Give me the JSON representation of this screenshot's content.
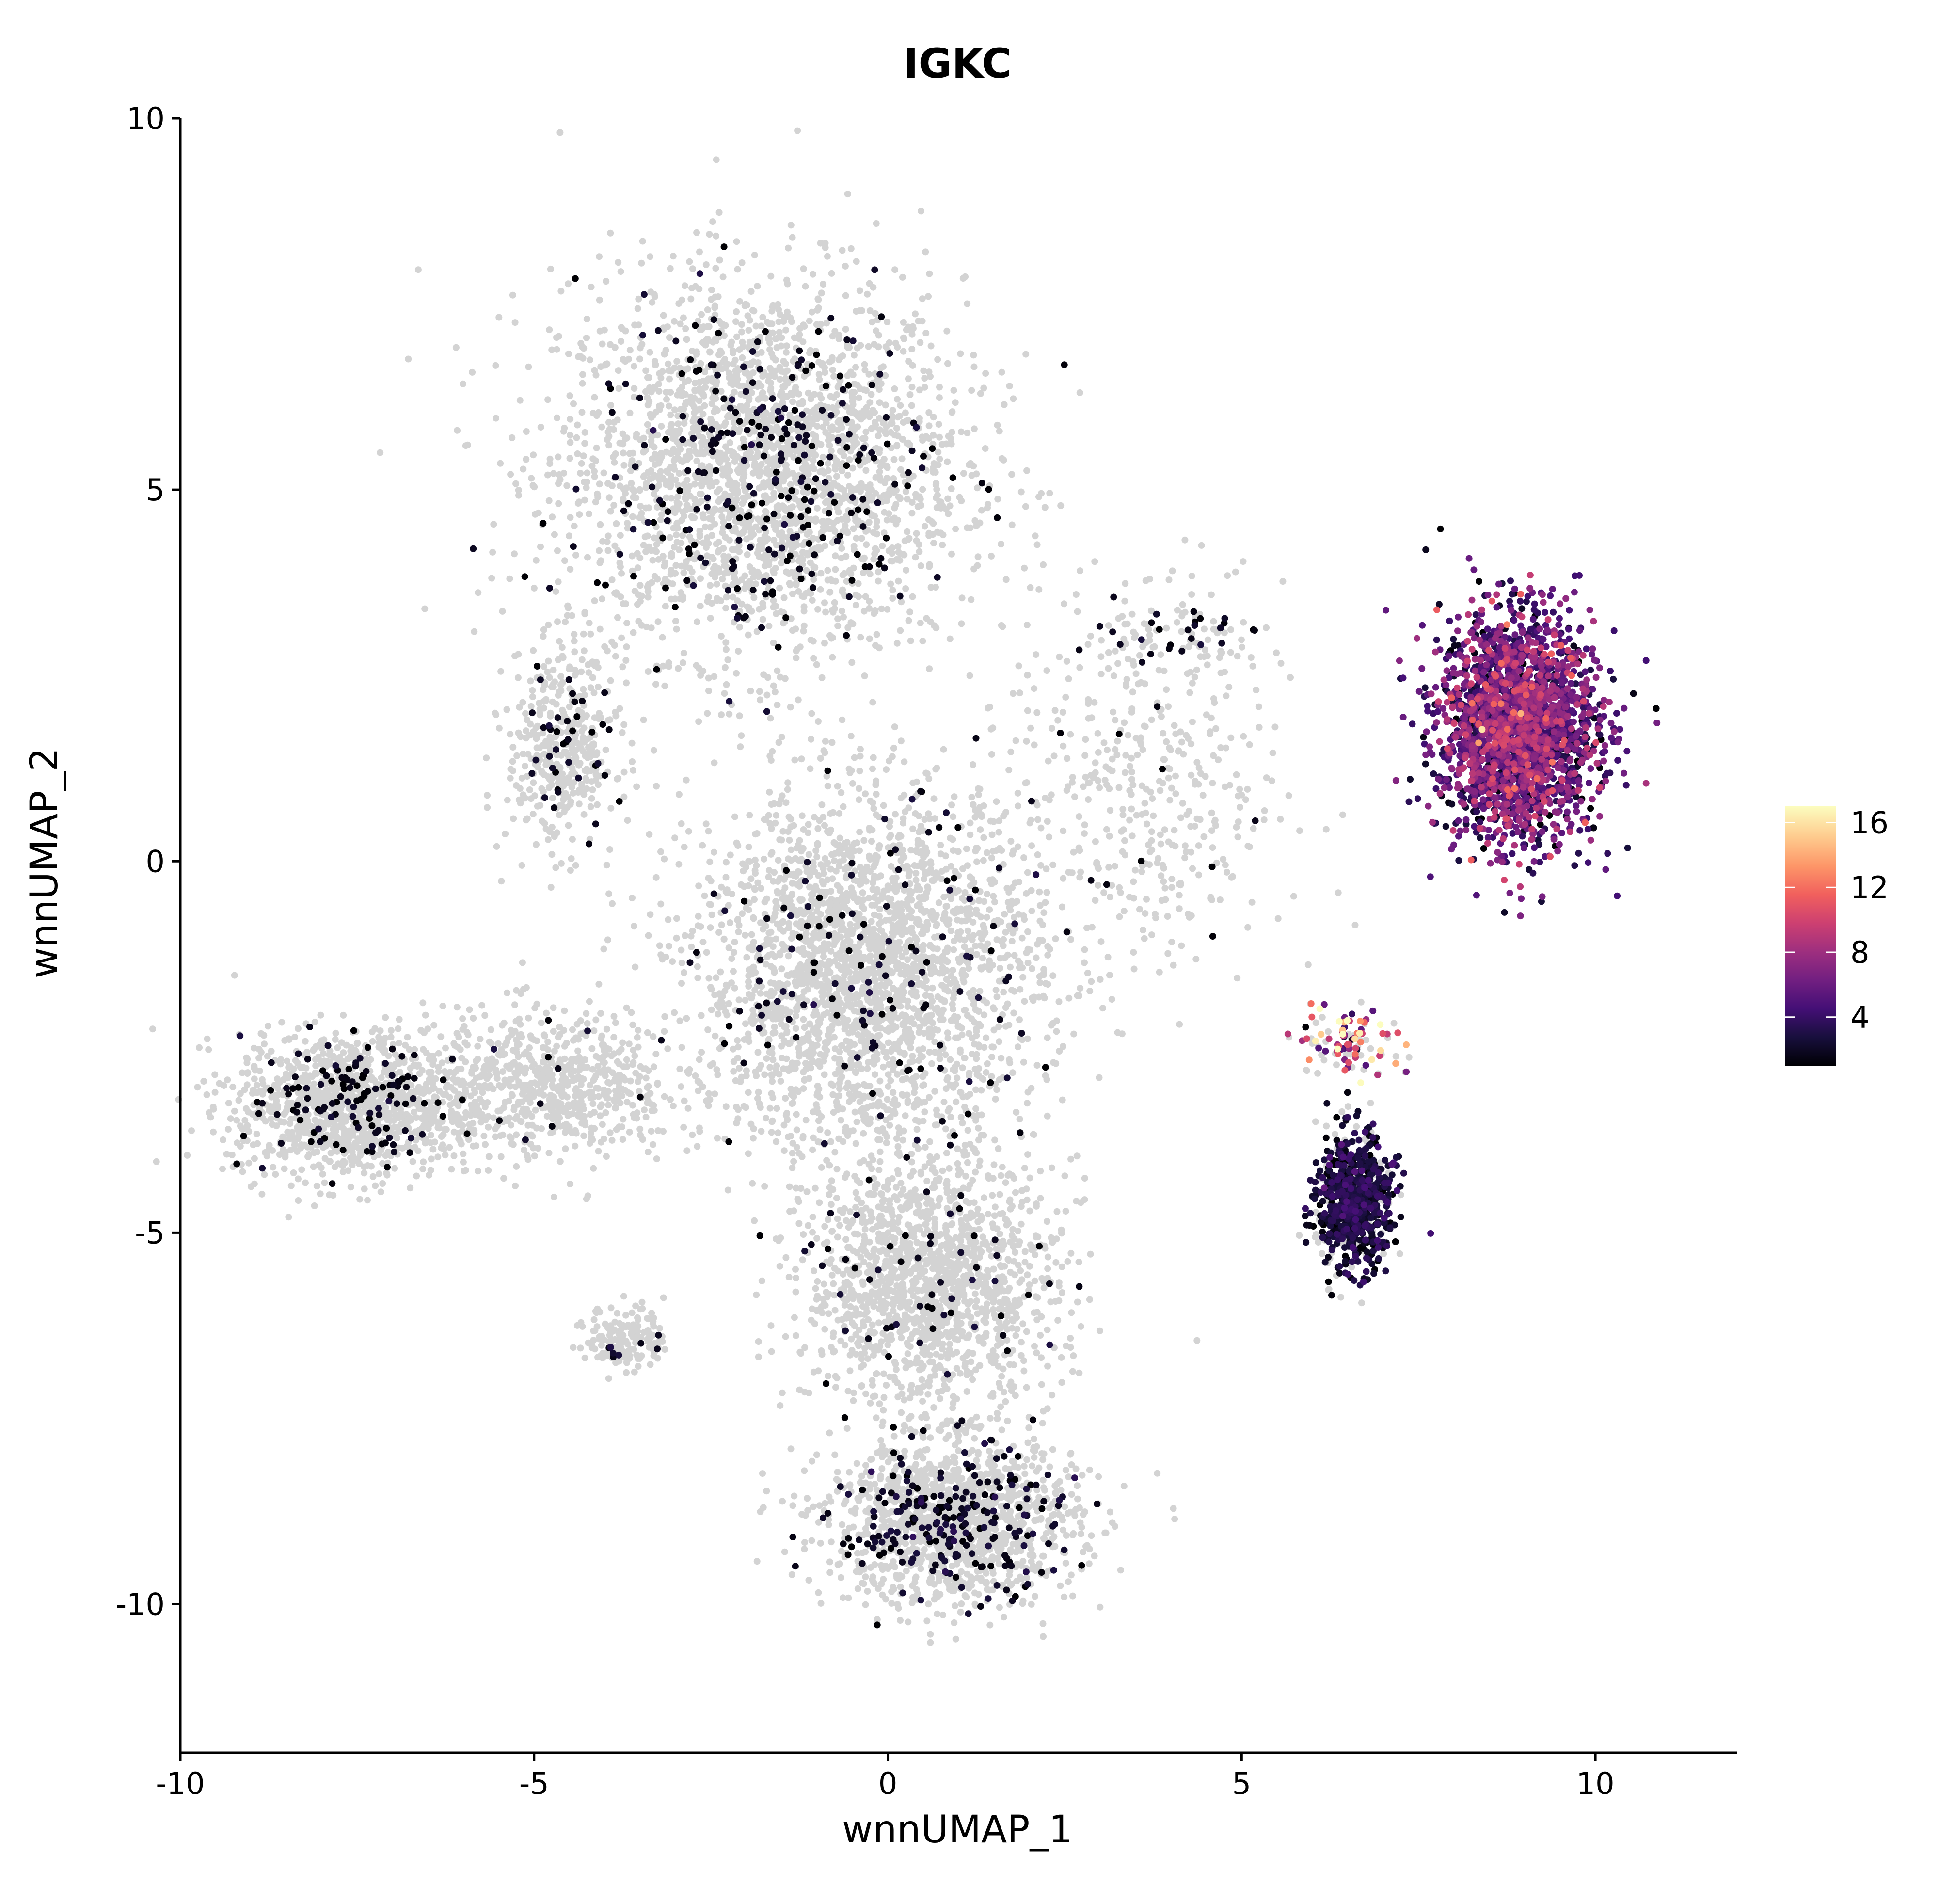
{
  "chart_data": {
    "type": "scatter",
    "title": "IGKC",
    "xlabel": "wnnUMAP_1",
    "ylabel": "wnnUMAP_2",
    "xlim": [
      -10,
      12
    ],
    "ylim": [
      -12,
      10
    ],
    "x_ticks": [
      -10,
      -5,
      0,
      5,
      10
    ],
    "y_ticks": [
      10,
      5,
      0,
      -5,
      -10
    ],
    "x_tick_labels": [
      "-10",
      "-5",
      "0",
      "5",
      "10"
    ],
    "y_tick_labels": [
      "10",
      "5",
      "0",
      "-5",
      "-10"
    ],
    "grid": false,
    "background_point_color": "#d3d3d3",
    "color_scale": {
      "name": "magma",
      "min": 1,
      "max": 17,
      "ticks": [
        4,
        8,
        12,
        16
      ],
      "tick_labels": [
        "4",
        "8",
        "12",
        "16"
      ],
      "colors": [
        "#000004",
        "#180f3d",
        "#440f76",
        "#721f81",
        "#9e2f7f",
        "#cd4071",
        "#f1605d",
        "#fd9668",
        "#feca8d",
        "#fcfdbf"
      ],
      "legend_position": "right"
    },
    "regions": [
      {
        "name": "upper-left lobe",
        "center": [
          -1.8,
          5.3
        ],
        "spread": [
          2.6,
          2.3
        ],
        "points": 2600,
        "expressing": 280,
        "expr_mean": 1.5
      },
      {
        "name": "upper-left arm",
        "center": [
          -4.6,
          1.5
        ],
        "spread": [
          0.7,
          1.2
        ],
        "points": 400,
        "expressing": 40,
        "expr_mean": 1.4
      },
      {
        "name": "central body",
        "center": [
          -0.3,
          -1.5
        ],
        "spread": [
          2.2,
          2.2
        ],
        "points": 2600,
        "expressing": 130,
        "expr_mean": 1.6
      },
      {
        "name": "left lobe",
        "center": [
          -7.6,
          -3.3
        ],
        "spread": [
          1.5,
          0.9
        ],
        "points": 1100,
        "expressing": 130,
        "expr_mean": 1.4
      },
      {
        "name": "left bridge",
        "center": [
          -4.8,
          -3.0
        ],
        "spread": [
          1.6,
          0.9
        ],
        "points": 700,
        "expressing": 10,
        "expr_mean": 1.4
      },
      {
        "name": "lower trunk",
        "center": [
          0.6,
          -5.7
        ],
        "spread": [
          1.6,
          1.5
        ],
        "points": 1500,
        "expressing": 60,
        "expr_mean": 1.6
      },
      {
        "name": "bottom lobe",
        "center": [
          0.9,
          -8.9
        ],
        "spread": [
          1.6,
          1.0
        ],
        "points": 1300,
        "expressing": 230,
        "expr_mean": 1.8
      },
      {
        "name": "small bottom-left island",
        "center": [
          -3.7,
          -6.4
        ],
        "spread": [
          0.5,
          0.4
        ],
        "points": 160,
        "expressing": 8,
        "expr_mean": 1.5
      },
      {
        "name": "sparse right wing",
        "center": [
          3.6,
          1.0
        ],
        "spread": [
          1.8,
          2.5
        ],
        "points": 450,
        "expressing": 15,
        "expr_mean": 1.3
      },
      {
        "name": "plasma cell cluster",
        "center": [
          8.9,
          1.8
        ],
        "spread": [
          1.1,
          1.5
        ],
        "points": 0,
        "expressing": 2400,
        "expr_mean": 5.5
      },
      {
        "name": "lower right cluster",
        "center": [
          6.6,
          -4.6
        ],
        "spread": [
          0.5,
          0.9
        ],
        "points": 150,
        "expressing": 650,
        "expr_mean": 2.4
      },
      {
        "name": "bridge strand",
        "center": [
          6.5,
          -2.4
        ],
        "spread": [
          0.7,
          0.5
        ],
        "points": 40,
        "expressing": 70,
        "expr_mean": 10.5
      },
      {
        "name": "diagonal streak",
        "center": [
          4.0,
          3.1
        ],
        "spread": [
          1.3,
          0.3
        ],
        "points": 40,
        "expressing": 25,
        "expr_mean": 1.6
      }
    ]
  }
}
